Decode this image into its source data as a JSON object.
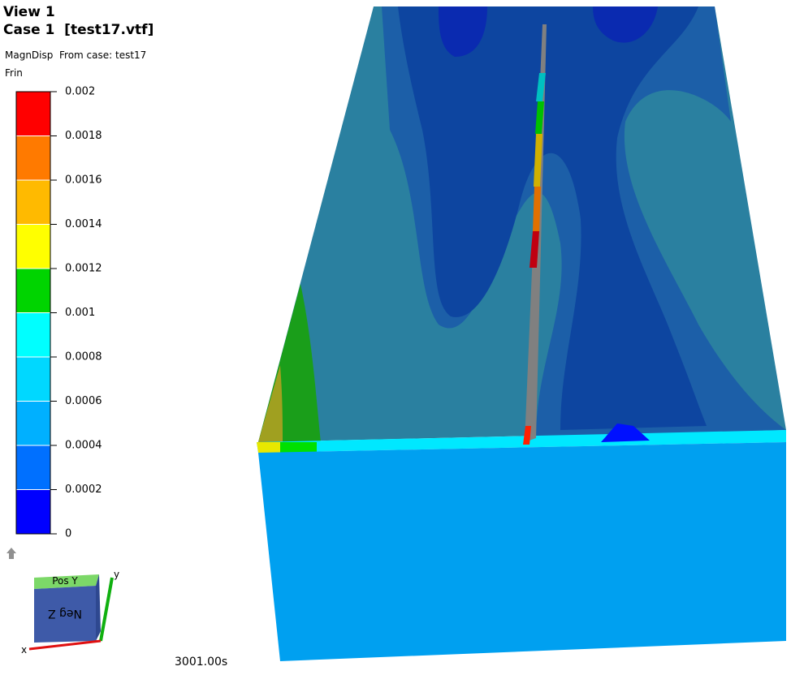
{
  "header": {
    "view": "View 1",
    "case": "Case 1  [test17.vtf]",
    "result": "MagnDisp  From case: test17",
    "mode": "Frin"
  },
  "legend": {
    "ticks": [
      0.002,
      0.0018,
      0.0016,
      0.0014,
      0.0012,
      0.001,
      0.0008,
      0.0006,
      0.0004,
      0.0002,
      0
    ],
    "colors": [
      "#ff0000",
      "#ff7a00",
      "#ffba00",
      "#ffff00",
      "#00d400",
      "#00ffff",
      "#00d8ff",
      "#00b0ff",
      "#0070ff",
      "#0000ff"
    ]
  },
  "view_cube": {
    "top_face": "Pos Y",
    "front_face": "Neg Z",
    "y_axis": "y",
    "x_axis": "x"
  },
  "time": "3001.00s"
}
